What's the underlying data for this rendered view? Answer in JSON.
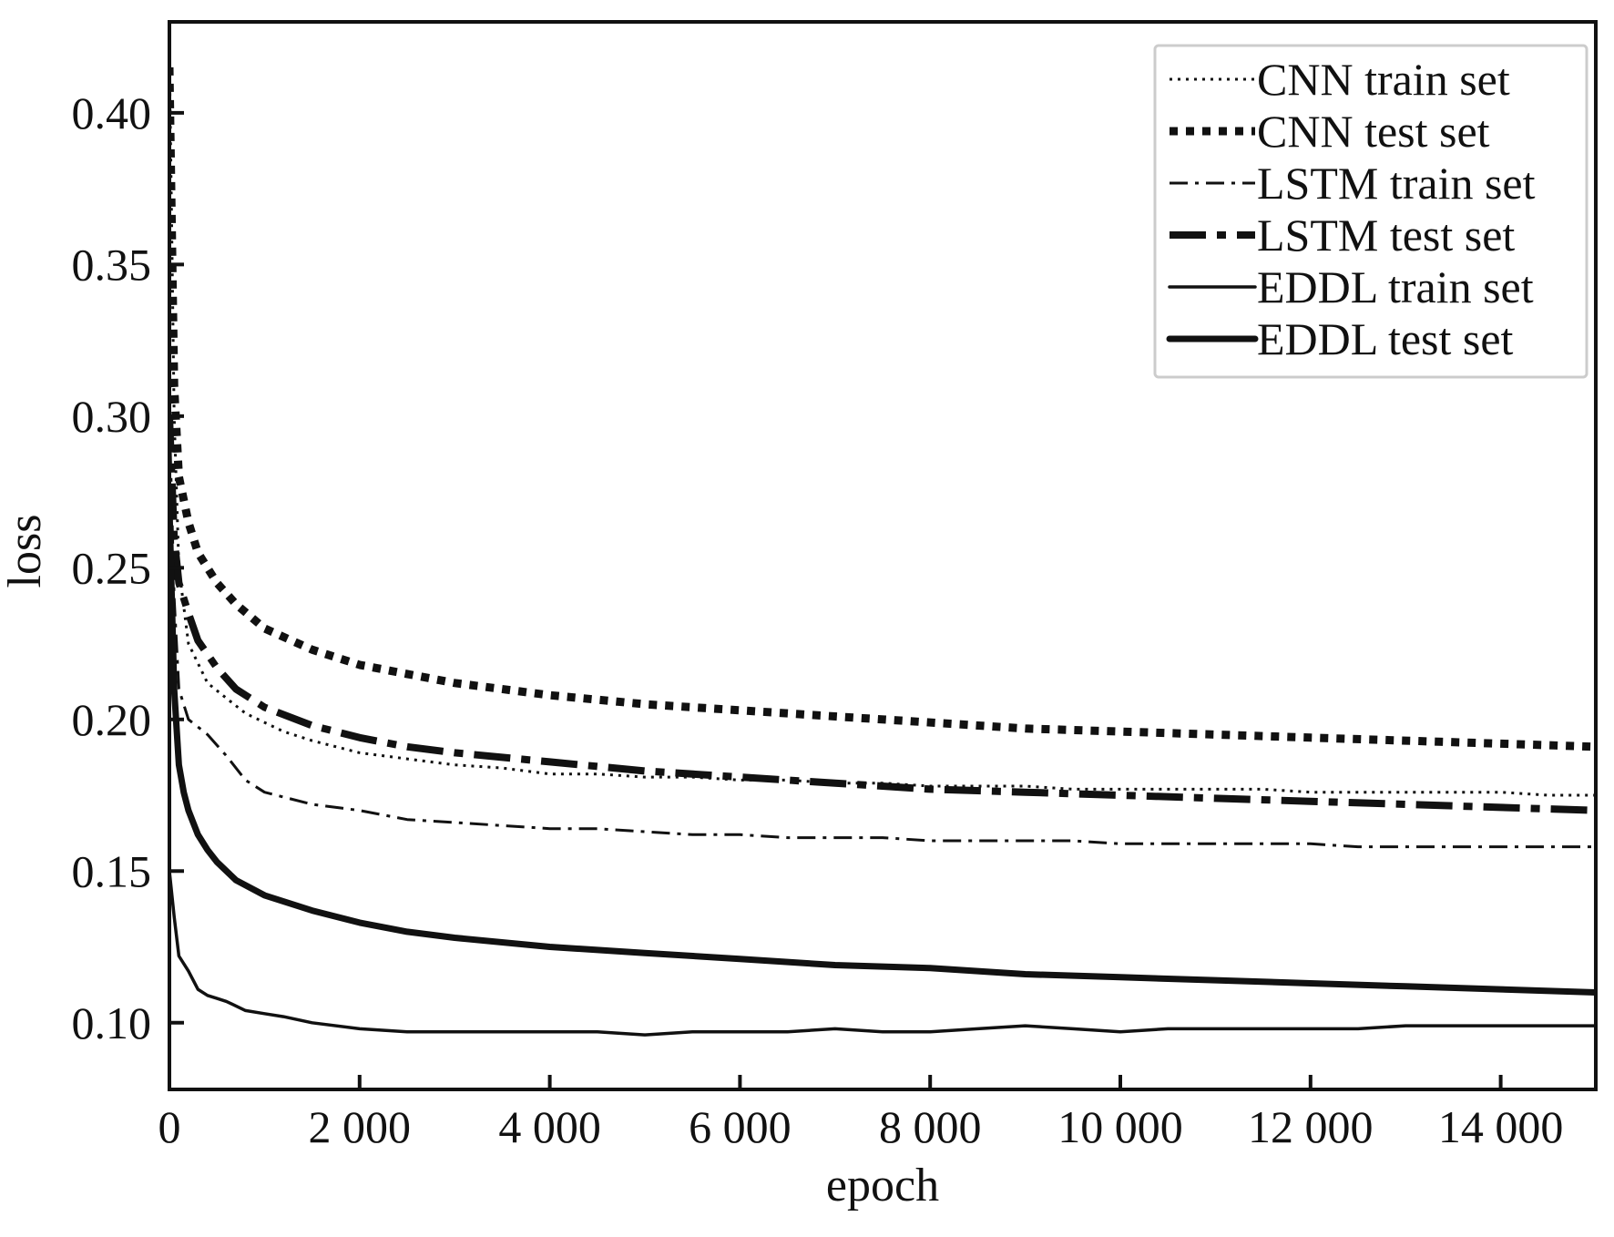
{
  "chart_data": {
    "type": "line",
    "xlabel": "epoch",
    "ylabel": "loss",
    "xlim": [
      0,
      15000
    ],
    "ylim": [
      0.078,
      0.43
    ],
    "grid": false,
    "legend_position": "top-right",
    "x_ticks": [
      0,
      2000,
      4000,
      6000,
      8000,
      10000,
      12000,
      14000
    ],
    "x_tick_labels": [
      "0",
      "2 000",
      "4 000",
      "6 000",
      "8 000",
      "10 000",
      "12 000",
      "14 000"
    ],
    "y_ticks": [
      0.1,
      0.15,
      0.2,
      0.25,
      0.3,
      0.35,
      0.4
    ],
    "y_tick_labels": [
      "0.10",
      "0.15",
      "0.20",
      "0.25",
      "0.30",
      "0.35",
      "0.40"
    ],
    "series": [
      {
        "name": "CNN train set",
        "style": "dotted-thin",
        "color": "#111111",
        "x": [
          0,
          50,
          100,
          200,
          400,
          600,
          800,
          1000,
          1200,
          1500,
          2000,
          2500,
          3000,
          3500,
          4000,
          4500,
          5000,
          5500,
          6000,
          6500,
          7000,
          7500,
          8000,
          8500,
          9000,
          9500,
          10000,
          10500,
          11000,
          11500,
          12000,
          12500,
          13000,
          13500,
          14000,
          14500,
          15000
        ],
        "y": [
          0.42,
          0.3,
          0.25,
          0.225,
          0.212,
          0.207,
          0.202,
          0.199,
          0.196,
          0.193,
          0.189,
          0.187,
          0.185,
          0.184,
          0.182,
          0.182,
          0.181,
          0.181,
          0.18,
          0.18,
          0.179,
          0.179,
          0.178,
          0.178,
          0.178,
          0.177,
          0.177,
          0.177,
          0.177,
          0.177,
          0.176,
          0.176,
          0.176,
          0.176,
          0.176,
          0.175,
          0.175
        ]
      },
      {
        "name": "CNN test set",
        "style": "dotted-thick",
        "color": "#111111",
        "x": [
          0,
          50,
          100,
          200,
          300,
          500,
          700,
          1000,
          1500,
          2000,
          2500,
          3000,
          4000,
          5000,
          6000,
          7000,
          8000,
          9000,
          10000,
          11000,
          12000,
          13000,
          14000,
          15000
        ],
        "y": [
          0.415,
          0.31,
          0.28,
          0.265,
          0.255,
          0.245,
          0.238,
          0.23,
          0.223,
          0.218,
          0.215,
          0.212,
          0.208,
          0.205,
          0.203,
          0.201,
          0.199,
          0.197,
          0.196,
          0.195,
          0.194,
          0.193,
          0.192,
          0.191
        ]
      },
      {
        "name": "LSTM train set",
        "style": "dash-dot-thin",
        "color": "#111111",
        "x": [
          0,
          50,
          100,
          200,
          400,
          600,
          800,
          1000,
          1500,
          2000,
          2500,
          3000,
          3500,
          4000,
          4500,
          5000,
          5500,
          6000,
          6500,
          7000,
          7500,
          8000,
          8500,
          9000,
          9500,
          10000,
          10500,
          11000,
          11500,
          12000,
          12500,
          13000,
          13500,
          14000,
          14500,
          15000
        ],
        "y": [
          0.3,
          0.24,
          0.21,
          0.2,
          0.195,
          0.188,
          0.18,
          0.176,
          0.172,
          0.17,
          0.167,
          0.166,
          0.165,
          0.164,
          0.164,
          0.163,
          0.162,
          0.162,
          0.161,
          0.161,
          0.161,
          0.16,
          0.16,
          0.16,
          0.16,
          0.159,
          0.159,
          0.159,
          0.159,
          0.159,
          0.158,
          0.158,
          0.158,
          0.158,
          0.158,
          0.158
        ]
      },
      {
        "name": "LSTM test set",
        "style": "dash-dot-thick",
        "color": "#111111",
        "x": [
          0,
          50,
          100,
          200,
          300,
          500,
          700,
          1000,
          1500,
          2000,
          2500,
          3000,
          4000,
          5000,
          6000,
          7000,
          8000,
          9000,
          10000,
          11000,
          12000,
          13000,
          14000,
          15000
        ],
        "y": [
          0.3,
          0.26,
          0.245,
          0.235,
          0.226,
          0.217,
          0.21,
          0.204,
          0.198,
          0.194,
          0.191,
          0.189,
          0.186,
          0.183,
          0.181,
          0.179,
          0.177,
          0.176,
          0.175,
          0.174,
          0.173,
          0.172,
          0.171,
          0.17
        ]
      },
      {
        "name": "EDDL train set",
        "style": "solid-thin",
        "color": "#111111",
        "x": [
          0,
          50,
          100,
          200,
          300,
          400,
          500,
          600,
          800,
          1000,
          1200,
          1500,
          2000,
          2500,
          3000,
          3500,
          4000,
          4500,
          5000,
          5500,
          6000,
          6500,
          7000,
          7500,
          8000,
          8500,
          9000,
          9500,
          10000,
          10500,
          11000,
          11500,
          12000,
          12500,
          13000,
          13500,
          14000,
          14500,
          15000
        ],
        "y": [
          0.15,
          0.135,
          0.122,
          0.117,
          0.111,
          0.109,
          0.108,
          0.107,
          0.104,
          0.103,
          0.102,
          0.1,
          0.098,
          0.097,
          0.097,
          0.097,
          0.097,
          0.097,
          0.096,
          0.097,
          0.097,
          0.097,
          0.098,
          0.097,
          0.097,
          0.098,
          0.099,
          0.098,
          0.097,
          0.098,
          0.098,
          0.098,
          0.098,
          0.098,
          0.099,
          0.099,
          0.099,
          0.099,
          0.099
        ]
      },
      {
        "name": "EDDL test set",
        "style": "solid-thick",
        "color": "#111111",
        "x": [
          0,
          50,
          100,
          150,
          200,
          300,
          400,
          500,
          700,
          1000,
          1500,
          2000,
          2500,
          3000,
          4000,
          5000,
          6000,
          7000,
          8000,
          9000,
          10000,
          11000,
          12000,
          13000,
          14000,
          15000
        ],
        "y": [
          0.27,
          0.21,
          0.185,
          0.176,
          0.17,
          0.162,
          0.157,
          0.153,
          0.147,
          0.142,
          0.137,
          0.133,
          0.13,
          0.128,
          0.125,
          0.123,
          0.121,
          0.119,
          0.118,
          0.116,
          0.115,
          0.114,
          0.113,
          0.112,
          0.111,
          0.11
        ]
      }
    ]
  }
}
